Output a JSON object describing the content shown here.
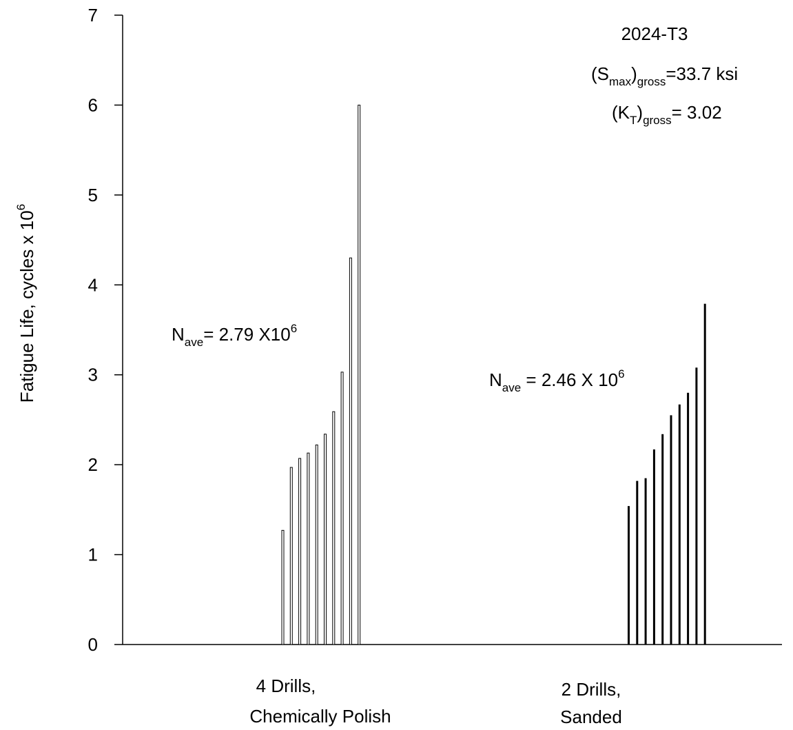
{
  "chart_data": {
    "type": "bar",
    "ylabel": "Fatigue Life,  cycles x 10",
    "ylabel_sup": "6",
    "ylim": [
      0,
      7
    ],
    "yticks": [
      "0",
      "1",
      "2",
      "3",
      "4",
      "5",
      "6",
      "7"
    ],
    "grid": false,
    "groups": [
      {
        "label_line1": "4 Drills,",
        "label_line2": "Chemically Polish",
        "style": "hollow",
        "values": [
          1.27,
          1.97,
          2.07,
          2.13,
          2.22,
          2.34,
          2.59,
          3.03,
          4.3,
          6.0
        ],
        "nave": {
          "N": "N",
          "sub": "ave",
          "text": "= 2.79 X10",
          "sup": "6"
        }
      },
      {
        "label_line1": "2 Drills,",
        "label_line2": "Sanded",
        "style": "solid",
        "values": [
          1.54,
          1.82,
          1.85,
          2.17,
          2.34,
          2.55,
          2.67,
          2.8,
          3.08,
          3.79
        ],
        "nave": {
          "N": "N",
          "sub": "ave",
          "text": " = 2.46 X 10",
          "sup": "6"
        }
      }
    ],
    "annotations": {
      "material": "2024-T3",
      "smax": {
        "open": "(S",
        "sub1": "max",
        "mid": ")",
        "sub2": "gross",
        "rest": "=33.7 ksi"
      },
      "kt": {
        "open": "(K",
        "sub1": "T",
        "mid": ")",
        "sub2": "gross",
        "rest": "= 3.02"
      }
    }
  }
}
